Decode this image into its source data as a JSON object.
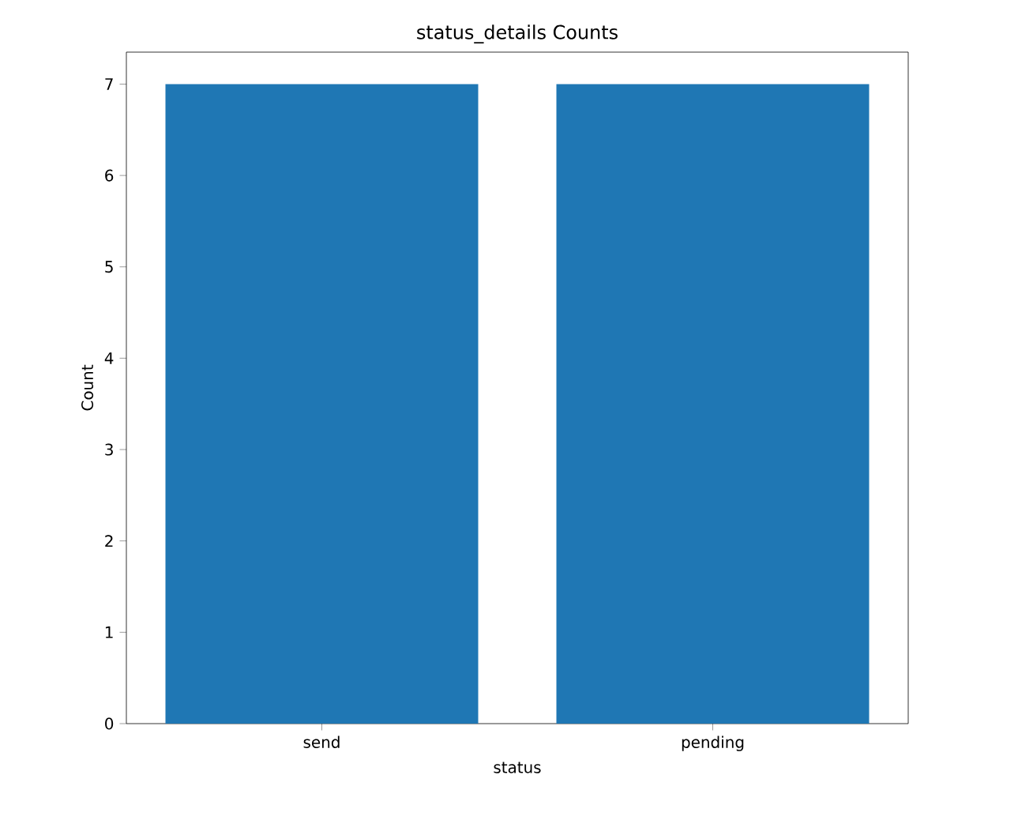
{
  "chart_data": {
    "type": "bar",
    "title": "status_details Counts",
    "xlabel": "status",
    "ylabel": "Count",
    "categories": [
      "send",
      "pending"
    ],
    "values": [
      7,
      7
    ],
    "color": "#1f77b4",
    "ylim": [
      0,
      7.35
    ],
    "yticks": [
      0,
      1,
      2,
      3,
      4,
      5,
      6,
      7
    ],
    "grid": false
  }
}
